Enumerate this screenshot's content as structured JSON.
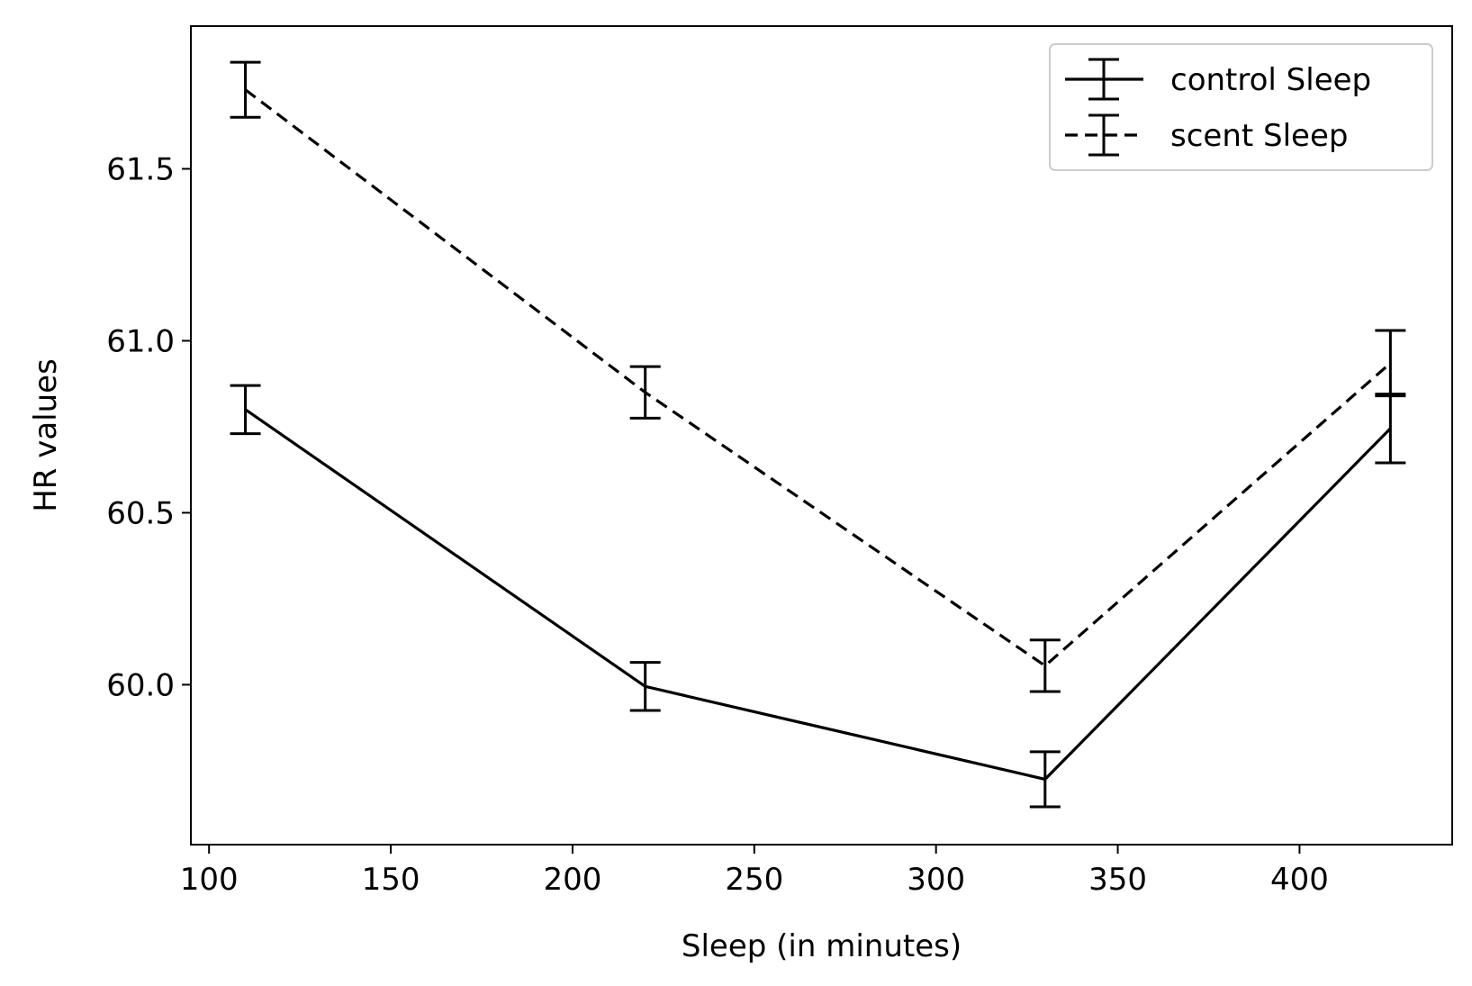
{
  "chart_data": {
    "type": "line",
    "title": "",
    "xlabel": "Sleep (in minutes)",
    "ylabel": "HR values",
    "xlim": [
      95,
      442
    ],
    "ylim": [
      59.535,
      61.915
    ],
    "xticks": [
      100,
      150,
      200,
      250,
      300,
      350,
      400
    ],
    "xtick_labels": [
      "100",
      "150",
      "200",
      "250",
      "300",
      "350",
      "400"
    ],
    "yticks": [
      60.0,
      60.5,
      61.0,
      61.5
    ],
    "ytick_labels": [
      "60.0",
      "60.5",
      "61.0",
      "61.5"
    ],
    "grid": false,
    "legend_position": "top-right",
    "series": [
      {
        "name": "control Sleep",
        "line_style": "solid",
        "color": "#000000",
        "x": [
          110,
          220,
          330,
          425
        ],
        "y": [
          60.8,
          59.995,
          59.725,
          60.745
        ],
        "yerr": [
          0.07,
          0.07,
          0.08,
          0.1
        ]
      },
      {
        "name": "scent Sleep",
        "line_style": "dashed",
        "color": "#000000",
        "x": [
          110,
          220,
          330,
          425
        ],
        "y": [
          61.73,
          60.85,
          60.055,
          60.935
        ],
        "yerr": [
          0.08,
          0.075,
          0.075,
          0.095
        ]
      }
    ]
  }
}
